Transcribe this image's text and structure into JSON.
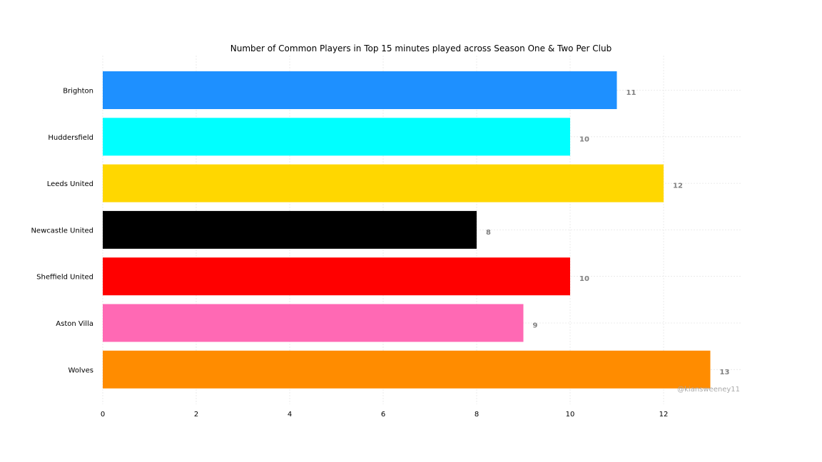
{
  "chart_data": {
    "type": "bar",
    "orientation": "horizontal",
    "title": "Number of Common Players in Top 15 minutes played across Season One & Two Per Club",
    "xlabel": "",
    "ylabel": "",
    "categories": [
      "Brighton",
      "Huddersfield",
      "Leeds United",
      "Newcastle United",
      "Sheffield United",
      "Aston Villa",
      "Wolves"
    ],
    "values": [
      11,
      10,
      12,
      8,
      10,
      9,
      13
    ],
    "colors": [
      "#1e90ff",
      "#00ffff",
      "#ffd700",
      "#000000",
      "#ff0000",
      "#ff69b4",
      "#ff8c00"
    ],
    "value_labels": [
      "11",
      "10",
      "12",
      "8",
      "10",
      "9",
      "13"
    ],
    "xticks": [
      0,
      2,
      4,
      6,
      8,
      10,
      12
    ],
    "xtick_labels": [
      "0",
      "2",
      "4",
      "6",
      "8",
      "10",
      "12"
    ],
    "xlim": [
      0,
      13.67
    ],
    "grid": true,
    "watermark": "@kiansweeney11"
  }
}
